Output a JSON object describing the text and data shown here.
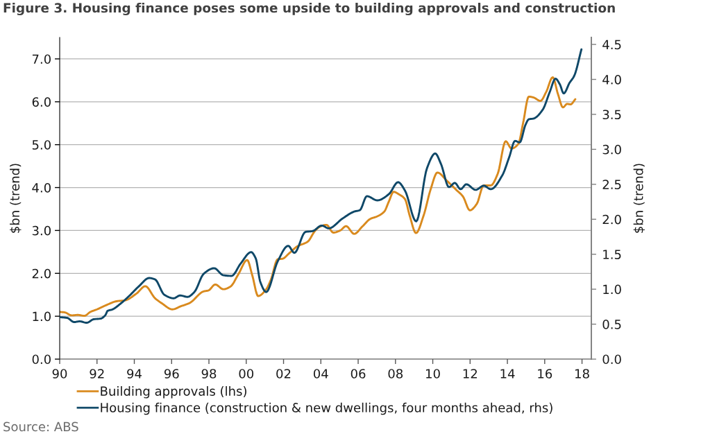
{
  "chart_data": {
    "type": "line",
    "title": "Figure 3. Housing finance poses some upside to building approvals and construction",
    "ylabel": "$bn (trend)",
    "y2label": "$bn (trend)",
    "annotations": [
      "Source: ABS"
    ],
    "xlim": [
      1990,
      2018.5
    ],
    "xticks": [
      {
        "value": 1990,
        "label": "90"
      },
      {
        "value": 1992,
        "label": "92"
      },
      {
        "value": 1994,
        "label": "94"
      },
      {
        "value": 1996,
        "label": "96"
      },
      {
        "value": 1998,
        "label": "98"
      },
      {
        "value": 2000,
        "label": "00"
      },
      {
        "value": 2002,
        "label": "02"
      },
      {
        "value": 2004,
        "label": "04"
      },
      {
        "value": 2006,
        "label": "06"
      },
      {
        "value": 2008,
        "label": "08"
      },
      {
        "value": 2010,
        "label": "10"
      },
      {
        "value": 2012,
        "label": "12"
      },
      {
        "value": 2014,
        "label": "14"
      },
      {
        "value": 2016,
        "label": "16"
      },
      {
        "value": 2018,
        "label": "18"
      }
    ],
    "ylim": [
      0,
      7.5
    ],
    "yticks": [
      {
        "value": 0,
        "label": "0.0"
      },
      {
        "value": 1,
        "label": "1.0"
      },
      {
        "value": 2,
        "label": "2.0"
      },
      {
        "value": 3,
        "label": "3.0"
      },
      {
        "value": 4,
        "label": "4.0"
      },
      {
        "value": 5,
        "label": "5.0"
      },
      {
        "value": 6,
        "label": "6.0"
      },
      {
        "value": 7,
        "label": "7.0"
      }
    ],
    "y2lim": [
      0,
      4.6
    ],
    "y2ticks": [
      {
        "value": 0,
        "label": "0.0"
      },
      0.5,
      {
        "value": 1,
        "label": "1.0"
      },
      1.5,
      {
        "value": 2,
        "label": "2.0"
      },
      2.5,
      {
        "value": 3,
        "label": "3.0"
      },
      3.5,
      {
        "value": 4,
        "label": "4.0"
      },
      4.5
    ],
    "grid": "y",
    "legend": "bottom",
    "line_style": "solid",
    "series": [
      {
        "name": "Building approvals (lhs)",
        "color": "#d98a1e",
        "x": [
          1990.0,
          1990.27,
          1990.64,
          1990.96,
          1991.33,
          1991.64,
          1992.0,
          1992.5,
          1993.06,
          1993.5,
          1994.12,
          1994.59,
          1995.11,
          1995.48,
          1996.04,
          1996.48,
          1996.97,
          1997.72,
          1997.97,
          1998.34,
          1998.77,
          1999.15,
          1999.58,
          2000.05,
          2000.32,
          2000.64,
          2001.07,
          2001.32,
          2001.69,
          2001.94,
          2002.31,
          2002.74,
          2003.3,
          2003.67,
          2003.92,
          2004.3,
          2004.67,
          2005.04,
          2005.35,
          2005.79,
          2006.22,
          2006.65,
          2007.03,
          2007.4,
          2007.65,
          2007.9,
          2008.2,
          2008.51,
          2008.76,
          2009.1,
          2009.51,
          2009.88,
          2010.25,
          2010.75,
          2011.25,
          2011.62,
          2011.99,
          2012.36,
          2012.73,
          2013.11,
          2013.48,
          2013.91,
          2014.22,
          2014.59,
          2014.84,
          2015.15,
          2015.4,
          2015.77,
          2016.08,
          2016.43,
          2016.71,
          2016.98,
          2017.2,
          2017.39,
          2017.64
        ],
        "values": [
          1.1,
          1.09,
          1.02,
          1.03,
          1.01,
          1.1,
          1.16,
          1.26,
          1.35,
          1.37,
          1.53,
          1.7,
          1.42,
          1.3,
          1.16,
          1.23,
          1.31,
          1.58,
          1.6,
          1.74,
          1.63,
          1.69,
          1.98,
          2.31,
          1.96,
          1.47,
          1.63,
          1.85,
          2.33,
          2.34,
          2.47,
          2.63,
          2.74,
          2.98,
          3.08,
          3.13,
          2.95,
          3.0,
          3.1,
          2.92,
          3.09,
          3.27,
          3.33,
          3.44,
          3.68,
          3.9,
          3.84,
          3.73,
          3.35,
          2.94,
          3.35,
          3.95,
          4.35,
          4.16,
          3.95,
          3.79,
          3.47,
          3.62,
          4.05,
          4.05,
          4.32,
          5.08,
          4.91,
          5.02,
          5.5,
          6.12,
          6.1,
          6.02,
          6.23,
          6.57,
          6.18,
          5.87,
          5.95,
          5.94,
          6.06
        ]
      },
      {
        "name": "Housing finance (construction & new dwellings, four months ahead, rhs)",
        "color": "#0f4868",
        "axis": "y2",
        "x": [
          1990.0,
          1990.4,
          1990.77,
          1991.08,
          1991.45,
          1991.82,
          1992.2,
          1992.45,
          1992.57,
          1992.82,
          1993.25,
          1993.75,
          1994.24,
          1994.8,
          1995.11,
          1995.61,
          1996.11,
          1996.45,
          1996.85,
          1997.22,
          1997.72,
          1998.28,
          1998.77,
          1999.21,
          1999.71,
          2000.26,
          2000.51,
          2000.76,
          2001.07,
          2001.69,
          2002.25,
          2002.58,
          2003.18,
          2003.55,
          2004.05,
          2004.42,
          2005.16,
          2005.79,
          2006.09,
          2006.47,
          2007.03,
          2007.65,
          2008.14,
          2008.51,
          2009.11,
          2009.69,
          2010.13,
          2010.44,
          2010.87,
          2011.18,
          2011.49,
          2011.8,
          2012.3,
          2012.73,
          2013.11,
          2013.73,
          2014.1,
          2014.41,
          2014.66,
          2014.97,
          2015.15,
          2015.4,
          2015.9,
          2016.27,
          2016.58,
          2016.81,
          2017.02,
          2017.33,
          2017.58,
          2017.97
        ],
        "values": [
          0.6,
          0.59,
          0.53,
          0.54,
          0.52,
          0.57,
          0.58,
          0.63,
          0.69,
          0.71,
          0.79,
          0.91,
          1.04,
          1.16,
          1.14,
          0.92,
          0.87,
          0.91,
          0.89,
          0.96,
          1.22,
          1.3,
          1.2,
          1.19,
          1.37,
          1.53,
          1.44,
          1.1,
          0.96,
          1.4,
          1.62,
          1.52,
          1.82,
          1.83,
          1.91,
          1.87,
          2.01,
          2.11,
          2.13,
          2.33,
          2.27,
          2.36,
          2.53,
          2.41,
          1.97,
          2.73,
          2.94,
          2.79,
          2.46,
          2.52,
          2.43,
          2.5,
          2.42,
          2.48,
          2.43,
          2.63,
          2.89,
          3.12,
          3.1,
          3.35,
          3.43,
          3.44,
          3.57,
          3.82,
          4.01,
          3.93,
          3.8,
          3.95,
          4.05,
          4.43
        ]
      }
    ]
  }
}
